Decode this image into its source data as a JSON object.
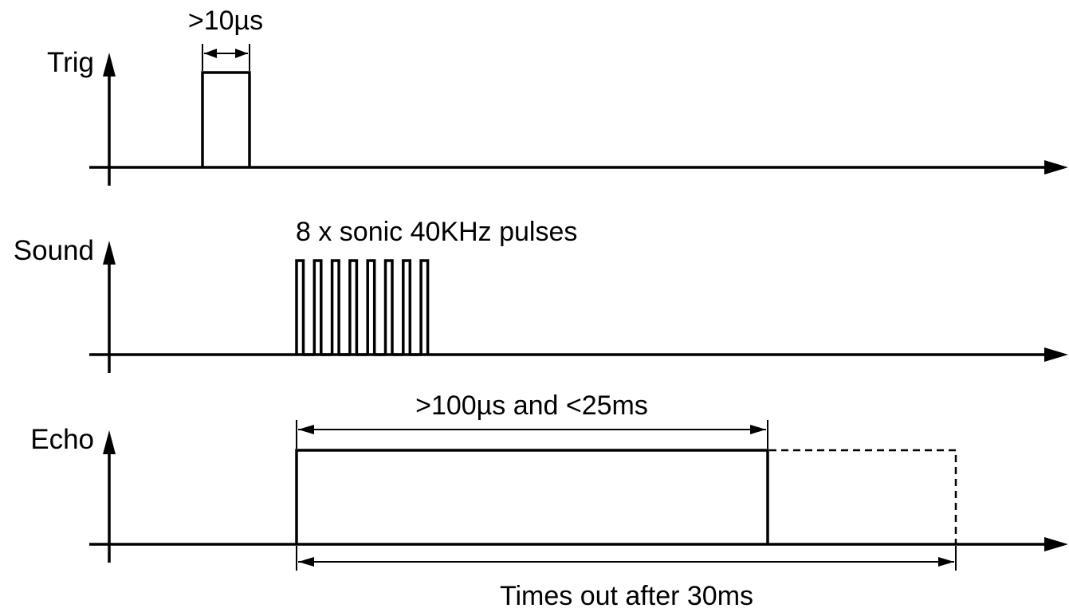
{
  "signals": [
    {
      "id": "trig",
      "label": "Trig"
    },
    {
      "id": "sound",
      "label": "Sound"
    },
    {
      "id": "echo",
      "label": "Echo"
    }
  ],
  "annotations": {
    "trig_pulse_width": ">10µs",
    "sound_burst": "8 x sonic 40KHz pulses",
    "echo_pulse_width": ">100µs and <25ms",
    "echo_timeout": "Times out after 30ms"
  },
  "timing": {
    "sound_pulse_count": 8
  }
}
